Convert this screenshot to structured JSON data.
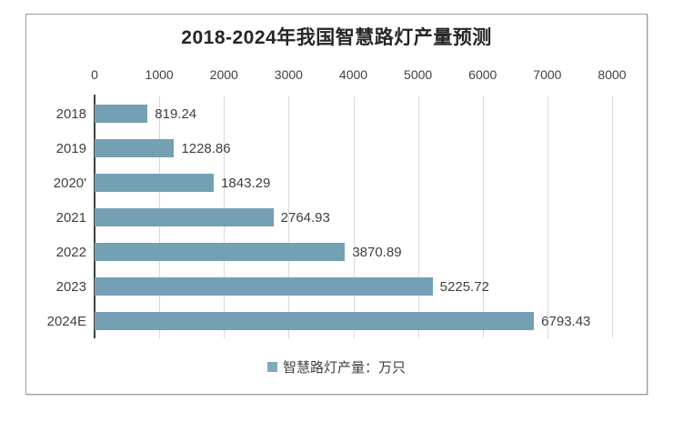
{
  "chart_data": {
    "type": "bar",
    "orientation": "horizontal",
    "title": "2018-2024年我国智慧路灯产量预测",
    "categories": [
      "2018",
      "2019",
      "2020'",
      "2021",
      "2022",
      "2023",
      "2024E"
    ],
    "series": [
      {
        "name": "智慧路灯产量：万只",
        "values": [
          819.24,
          1228.86,
          1843.29,
          2764.93,
          3870.89,
          5225.72,
          6793.43
        ]
      }
    ],
    "value_labels": [
      "819.24",
      "1228.86",
      "1843.29",
      "2764.93",
      "3870.89",
      "5225.72",
      "6793.43"
    ],
    "x_ticks": [
      "0",
      "1000",
      "2000",
      "3000",
      "4000",
      "5000",
      "6000",
      "7000",
      "8000"
    ],
    "xlim": [
      0,
      8000
    ],
    "xlabel": "",
    "ylabel": "",
    "grid": "vertical-only",
    "legend_position": "bottom",
    "legend": {
      "label": "智慧路灯产量：万只"
    },
    "colors": {
      "bar": "#74a0b4",
      "legend_swatch": "#7fa9bd",
      "axis_line": "#404040",
      "gridline": "#d9d9d9",
      "title_text": "#262626",
      "label_text": "#404040",
      "frame_border": "#9d9d9d"
    }
  }
}
